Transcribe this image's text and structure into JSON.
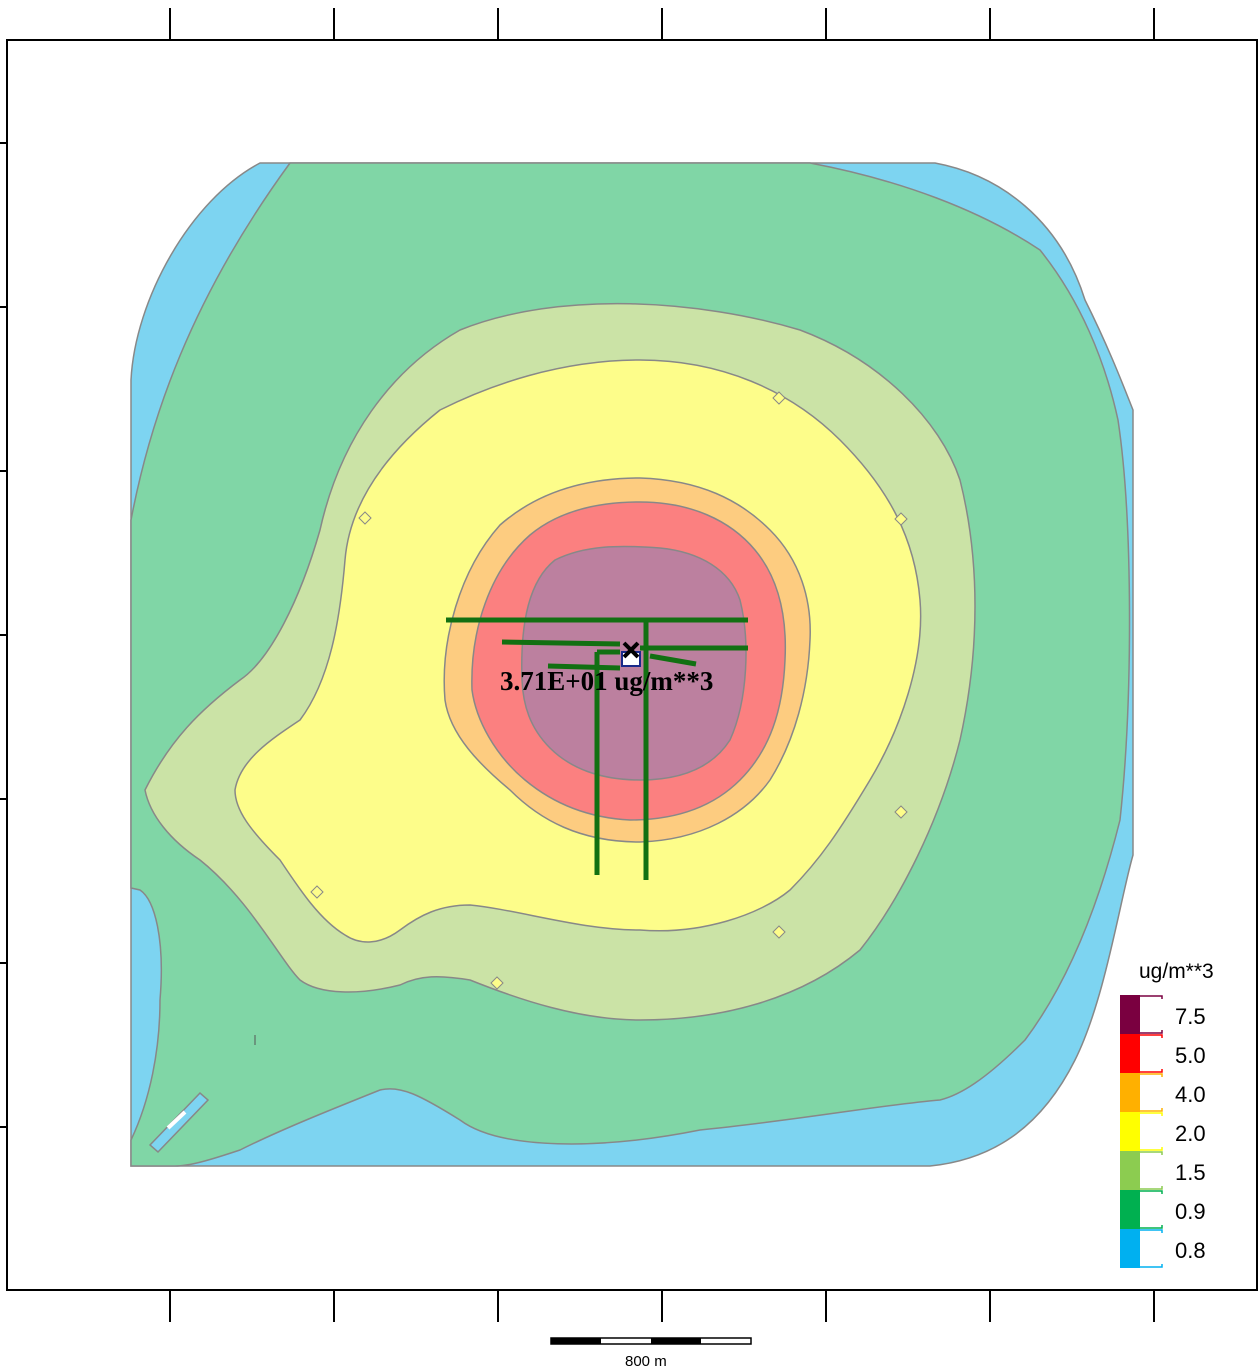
{
  "map": {
    "peak_label": "3.71E+01 ug/m**3",
    "scale_bar_label": "800 m"
  },
  "legend": {
    "title": "ug/m**3",
    "items": [
      {
        "value": "7.5",
        "color": "#7a0040"
      },
      {
        "value": "5.0",
        "color": "#ff0000"
      },
      {
        "value": "4.0",
        "color": "#ffb000"
      },
      {
        "value": "2.0",
        "color": "#ffff00"
      },
      {
        "value": "1.5",
        "color": "#8ccc50"
      },
      {
        "value": "0.9",
        "color": "#00b050"
      },
      {
        "value": "0.8",
        "color": "#00b0f0"
      }
    ]
  },
  "contour_colors": {
    "0.8": "#7dd4f1",
    "0.9": "#80d6a6",
    "1.5": "#cbe3a6",
    "2.0": "#fdfd8a",
    "4.0": "#fdcc80",
    "5.0": "#fb8080",
    "7.5": "#bc809f"
  }
}
